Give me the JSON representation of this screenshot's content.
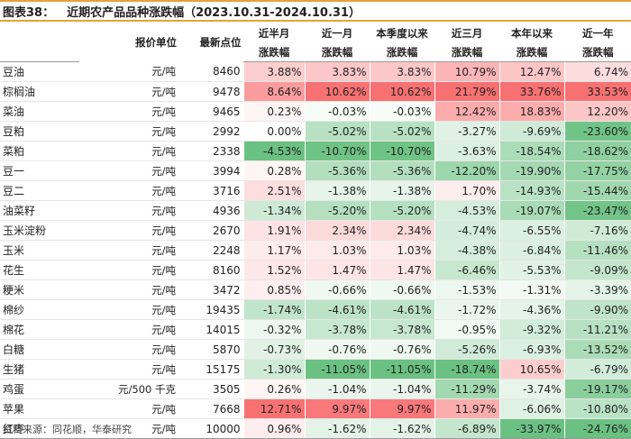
{
  "title": {
    "label": "图表38：",
    "text": "近期农产品品种涨跌幅（2023.10.31-2024.10.31）"
  },
  "header": {
    "unit": "报价单位",
    "price": "最新点位",
    "periods": [
      [
        "近半月",
        "涨跌幅"
      ],
      [
        "近一月",
        "涨跌幅"
      ],
      [
        "本季度以来",
        "涨跌幅"
      ],
      [
        "近三月",
        "涨跌幅"
      ],
      [
        "本年以来",
        "涨跌幅"
      ],
      [
        "近一年",
        "涨跌幅"
      ]
    ]
  },
  "rows": [
    {
      "name": "豆油",
      "unit": "元/吨",
      "price": "8460",
      "values": [
        "3.88%",
        "3.83%",
        "3.83%",
        "10.79%",
        "12.47%",
        "6.74%"
      ]
    },
    {
      "name": "棕榈油",
      "unit": "元/吨",
      "price": "9478",
      "values": [
        "8.64%",
        "10.62%",
        "10.62%",
        "21.79%",
        "33.76%",
        "33.53%"
      ]
    },
    {
      "name": "菜油",
      "unit": "元/吨",
      "price": "9465",
      "values": [
        "0.23%",
        "-0.03%",
        "-0.03%",
        "12.42%",
        "18.83%",
        "12.20%"
      ]
    },
    {
      "name": "豆粕",
      "unit": "元/吨",
      "price": "2992",
      "values": [
        "0.00%",
        "-5.02%",
        "-5.02%",
        "-3.27%",
        "-9.69%",
        "-23.60%"
      ]
    },
    {
      "name": "菜粕",
      "unit": "元/吨",
      "price": "2338",
      "values": [
        "-4.53%",
        "-10.70%",
        "-10.70%",
        "-3.63%",
        "-18.54%",
        "-18.62%"
      ]
    },
    {
      "name": "豆一",
      "unit": "元/吨",
      "price": "3994",
      "values": [
        "0.28%",
        "-5.36%",
        "-5.36%",
        "-12.20%",
        "-19.90%",
        "-17.75%"
      ]
    },
    {
      "name": "豆二",
      "unit": "元/吨",
      "price": "3716",
      "values": [
        "2.51%",
        "-1.38%",
        "-1.38%",
        "1.70%",
        "-14.93%",
        "-15.44%"
      ]
    },
    {
      "name": "油菜籽",
      "unit": "元/吨",
      "price": "4936",
      "values": [
        "-1.34%",
        "-5.20%",
        "-5.20%",
        "-4.53%",
        "-19.07%",
        "-23.47%"
      ]
    },
    {
      "name": "玉米淀粉",
      "unit": "元/吨",
      "price": "2670",
      "values": [
        "1.91%",
        "2.34%",
        "2.34%",
        "-4.74%",
        "-6.55%",
        "-7.16%"
      ]
    },
    {
      "name": "玉米",
      "unit": "元/吨",
      "price": "2248",
      "values": [
        "1.17%",
        "1.03%",
        "1.03%",
        "-4.38%",
        "-6.84%",
        "-11.46%"
      ]
    },
    {
      "name": "花生",
      "unit": "元/吨",
      "price": "8160",
      "values": [
        "1.52%",
        "1.47%",
        "1.47%",
        "-6.46%",
        "-5.53%",
        "-9.09%"
      ]
    },
    {
      "name": "粳米",
      "unit": "元/吨",
      "price": "3472",
      "values": [
        "0.85%",
        "-0.66%",
        "-0.66%",
        "-1.53%",
        "-1.31%",
        "-3.39%"
      ]
    },
    {
      "name": "棉纱",
      "unit": "元/吨",
      "price": "19435",
      "values": [
        "-1.74%",
        "-4.61%",
        "-4.61%",
        "-1.72%",
        "-4.36%",
        "-9.90%"
      ]
    },
    {
      "name": "棉花",
      "unit": "元/吨",
      "price": "14015",
      "values": [
        "-0.32%",
        "-3.78%",
        "-3.78%",
        "-0.95%",
        "-9.32%",
        "-11.21%"
      ]
    },
    {
      "name": "白糖",
      "unit": "元/吨",
      "price": "5870",
      "values": [
        "-0.73%",
        "-0.76%",
        "-0.76%",
        "-5.26%",
        "-6.93%",
        "-13.52%"
      ]
    },
    {
      "name": "生猪",
      "unit": "元/吨",
      "price": "15175",
      "values": [
        "-1.30%",
        "-11.05%",
        "-11.05%",
        "-18.74%",
        "10.65%",
        "-6.79%"
      ]
    },
    {
      "name": "鸡蛋",
      "unit": "元/500 千克",
      "price": "3505",
      "values": [
        "0.26%",
        "-1.04%",
        "-1.04%",
        "-11.29%",
        "-3.74%",
        "-19.17%"
      ]
    },
    {
      "name": "苹果",
      "unit": "元/吨",
      "price": "7668",
      "values": [
        "12.71%",
        "9.97%",
        "9.97%",
        "11.97%",
        "-6.06%",
        "-10.80%"
      ]
    },
    {
      "name": "红枣",
      "unit": "元/吨",
      "price": "10000",
      "values": [
        "0.96%",
        "-1.62%",
        "-1.62%",
        "-6.89%",
        "-33.97%",
        "-24.76%"
      ]
    }
  ],
  "source": "资料来源：同花顺，华泰研究",
  "colors": {
    "positive": "#f8696b",
    "negative": "#63be7b",
    "neutral": "#ffffff",
    "title_rule": "#e6a23c"
  }
}
